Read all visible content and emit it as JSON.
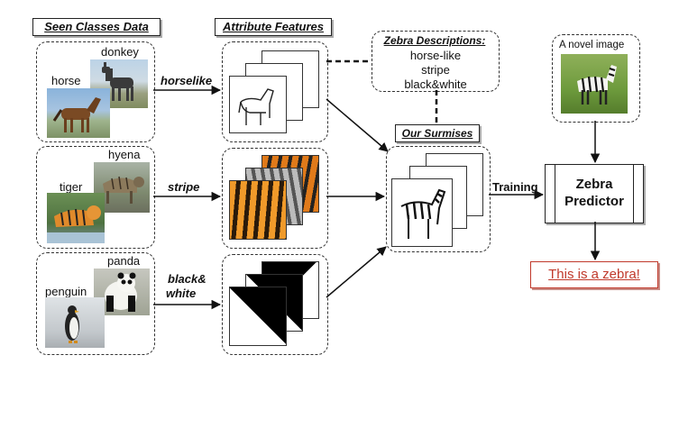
{
  "headers": {
    "seen": "Seen Classes Data",
    "attr": "Attribute Features",
    "zebra_desc": "Zebra Descriptions:",
    "surmises": "Our Surmises"
  },
  "classes": {
    "row1": {
      "a": "donkey",
      "b": "horse"
    },
    "row2": {
      "a": "hyena",
      "b": "tiger"
    },
    "row3": {
      "a": "panda",
      "b": "penguin"
    }
  },
  "attributes": {
    "a1": "horselike",
    "a2": "stripe",
    "a3_line1": "black&",
    "a3_line2": "white"
  },
  "descriptions": [
    "horse-like",
    "stripe",
    "black&white"
  ],
  "novel_image_label": "A novel image",
  "training_label": "Training",
  "predictor": {
    "line1": "Zebra",
    "line2": "Predictor"
  },
  "result": "This is a zebra!",
  "colors": {
    "result_text": "#c0392b",
    "result_border": "#c0392b"
  }
}
